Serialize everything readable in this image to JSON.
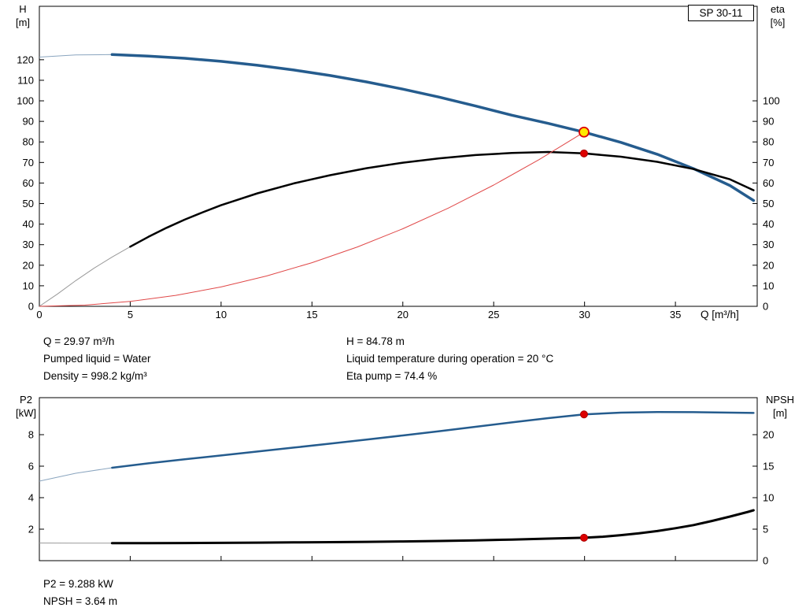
{
  "badge_label": "SP 30-11",
  "info_top": {
    "q": "Q = 29.97 m³/h",
    "pumped_liquid": "Pumped liquid = Water",
    "density": "Density = 998.2 kg/m³",
    "h": "H = 84.78 m",
    "liquid_temp": "Liquid temperature during operation = 20 °C",
    "eta_pump": "Eta pump = 74.4 %"
  },
  "info_bottom": {
    "p2": "P2 = 9.288 kW",
    "npsh": "NPSH = 3.64 m"
  },
  "colors": {
    "curve_blue": "#255c8e",
    "curve_black": "#000000",
    "system_red": "#e04848",
    "marker_red": "#dd0000",
    "marker_yellow": "#ffe800"
  },
  "chart_data": [
    {
      "type": "line",
      "title": "Pump head and efficiency curve, SP 30-11",
      "x_label": "Q [m³/h]",
      "xlim": [
        0,
        39.5
      ],
      "x_ticks": [
        0,
        5,
        10,
        15,
        20,
        25,
        30,
        35
      ],
      "left_axis": {
        "label": "H",
        "unit": "[m]",
        "lim": [
          0,
          146
        ],
        "ticks": [
          0,
          10,
          20,
          30,
          40,
          50,
          60,
          70,
          80,
          90,
          100,
          110,
          120
        ]
      },
      "right_axis": {
        "label": "eta",
        "unit": "[%]",
        "lim": [
          0,
          146
        ],
        "ticks": [
          0,
          10,
          20,
          30,
          40,
          50,
          60,
          70,
          80,
          90,
          100
        ]
      },
      "badge": "SP 30-11",
      "series": [
        {
          "name": "head-curve",
          "axis": "left",
          "color": "#255c8e",
          "thin_color": "#8aa5bf",
          "width": 3.5,
          "thick_from": 2.5,
          "points": [
            [
              0,
              121.3
            ],
            [
              2,
              122.3
            ],
            [
              4,
              122.5
            ],
            [
              6,
              121.8
            ],
            [
              8,
              120.7
            ],
            [
              10,
              119.2
            ],
            [
              12,
              117.3
            ],
            [
              14,
              115.0
            ],
            [
              16,
              112.3
            ],
            [
              18,
              109.2
            ],
            [
              20,
              105.7
            ],
            [
              22,
              101.8
            ],
            [
              24,
              97.5
            ],
            [
              26,
              93.0
            ],
            [
              28,
              89.0
            ],
            [
              29.97,
              84.78
            ],
            [
              32,
              79.8
            ],
            [
              34,
              74.0
            ],
            [
              36,
              67.0
            ],
            [
              38,
              58.8
            ],
            [
              39.3,
              51.5
            ]
          ]
        },
        {
          "name": "efficiency-curve",
          "axis": "left",
          "color": "#000000",
          "thin_color": "#999999",
          "width": 2.5,
          "thick_from": 5,
          "points": [
            [
              0,
              0
            ],
            [
              1,
              6
            ],
            [
              2,
              12.5
            ],
            [
              3,
              18.5
            ],
            [
              4,
              24
            ],
            [
              5,
              29
            ],
            [
              6,
              33.8
            ],
            [
              7,
              38.2
            ],
            [
              8,
              42.2
            ],
            [
              9,
              45.8
            ],
            [
              10,
              49.2
            ],
            [
              12,
              55.0
            ],
            [
              14,
              59.8
            ],
            [
              16,
              63.8
            ],
            [
              18,
              67.2
            ],
            [
              20,
              69.9
            ],
            [
              22,
              72.0
            ],
            [
              24,
              73.6
            ],
            [
              26,
              74.6
            ],
            [
              28,
              75.1
            ],
            [
              29.97,
              74.4
            ],
            [
              32,
              72.8
            ],
            [
              34,
              70.3
            ],
            [
              36,
              66.8
            ],
            [
              38,
              61.8
            ],
            [
              39.3,
              56.5
            ]
          ]
        },
        {
          "name": "system-curve",
          "axis": "left",
          "color": "#e04848",
          "thin_color": "#e04848",
          "width": 1,
          "thick_from": null,
          "points": [
            [
              0,
              0
            ],
            [
              2.5,
              0.59
            ],
            [
              5,
              2.36
            ],
            [
              7.5,
              5.31
            ],
            [
              10,
              9.44
            ],
            [
              12.5,
              14.75
            ],
            [
              15,
              21.24
            ],
            [
              17.5,
              28.9
            ],
            [
              20,
              37.76
            ],
            [
              22.5,
              47.8
            ],
            [
              25,
              59.0
            ],
            [
              27.5,
              71.4
            ],
            [
              29.97,
              84.78
            ]
          ]
        }
      ],
      "markers": [
        {
          "name": "duty-point-head",
          "axis": "left",
          "x": 29.97,
          "y": 84.78,
          "r": 6,
          "fill": "#ffe800",
          "stroke": "#dd0000",
          "stroke_width": 1.8
        },
        {
          "name": "duty-point-eta",
          "axis": "left",
          "x": 29.97,
          "y": 74.4,
          "r": 4.5,
          "fill": "#dd0000",
          "stroke": "#aa0000",
          "stroke_width": 1
        }
      ]
    },
    {
      "type": "line",
      "title": "Power P2 and NPSH curve",
      "x_label": "",
      "xlim": [
        0,
        39.5
      ],
      "x_ticks": [
        0,
        5,
        10,
        15,
        20,
        25,
        30,
        35
      ],
      "left_axis": {
        "label": "P2",
        "unit": "[kW]",
        "lim": [
          0,
          10.35
        ],
        "ticks": [
          2,
          4,
          6,
          8
        ]
      },
      "right_axis": {
        "label": "NPSH",
        "unit": "[m]",
        "lim": [
          0,
          25.875
        ],
        "ticks": [
          0,
          5,
          10,
          15,
          20
        ]
      },
      "badge": "",
      "series": [
        {
          "name": "p2-curve",
          "axis": "left",
          "color": "#255c8e",
          "thin_color": "#8aa5bf",
          "width": 2.5,
          "thick_from": 3,
          "points": [
            [
              0,
              5.05
            ],
            [
              2,
              5.55
            ],
            [
              4,
              5.9
            ],
            [
              6,
              6.18
            ],
            [
              8,
              6.44
            ],
            [
              10,
              6.68
            ],
            [
              12,
              6.93
            ],
            [
              14,
              7.18
            ],
            [
              16,
              7.43
            ],
            [
              18,
              7.69
            ],
            [
              20,
              7.95
            ],
            [
              22,
              8.22
            ],
            [
              24,
              8.5
            ],
            [
              26,
              8.78
            ],
            [
              28,
              9.05
            ],
            [
              29.97,
              9.288
            ],
            [
              32,
              9.4
            ],
            [
              34,
              9.44
            ],
            [
              36,
              9.43
            ],
            [
              38,
              9.4
            ],
            [
              39.3,
              9.38
            ]
          ]
        },
        {
          "name": "npsh-curve",
          "axis": "right",
          "color": "#000000",
          "thin_color": "#999999",
          "width": 3,
          "thick_from": 2.5,
          "points": [
            [
              0,
              2.8
            ],
            [
              2,
              2.78
            ],
            [
              4,
              2.77
            ],
            [
              6,
              2.78
            ],
            [
              8,
              2.8
            ],
            [
              10,
              2.83
            ],
            [
              12,
              2.86
            ],
            [
              14,
              2.9
            ],
            [
              16,
              2.94
            ],
            [
              18,
              2.99
            ],
            [
              20,
              3.05
            ],
            [
              22,
              3.12
            ],
            [
              24,
              3.22
            ],
            [
              26,
              3.35
            ],
            [
              28,
              3.5
            ],
            [
              29.97,
              3.64
            ],
            [
              31,
              3.8
            ],
            [
              32,
              4.05
            ],
            [
              33,
              4.35
            ],
            [
              34,
              4.7
            ],
            [
              35,
              5.15
            ],
            [
              36,
              5.65
            ],
            [
              37,
              6.3
            ],
            [
              38,
              7.0
            ],
            [
              39,
              7.75
            ],
            [
              39.3,
              8.0
            ]
          ]
        }
      ],
      "markers": [
        {
          "name": "duty-point-p2",
          "axis": "left",
          "x": 29.97,
          "y": 9.288,
          "r": 4.5,
          "fill": "#dd0000",
          "stroke": "#aa0000",
          "stroke_width": 1
        },
        {
          "name": "duty-point-npsh",
          "axis": "right",
          "x": 29.97,
          "y": 3.64,
          "r": 4.5,
          "fill": "#dd0000",
          "stroke": "#aa0000",
          "stroke_width": 1
        }
      ]
    }
  ]
}
